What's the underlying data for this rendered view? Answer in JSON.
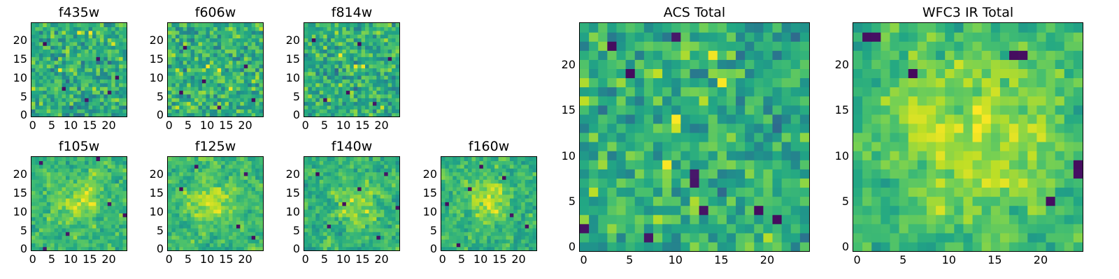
{
  "figure": {
    "colormap": "viridis",
    "colors": {
      "low": "#440154",
      "mid": "#21918c",
      "high": "#fde725"
    }
  },
  "chart_data": [
    {
      "type": "heatmap",
      "title": "f435w",
      "grid": [
        25,
        25
      ],
      "xticks": [
        "0",
        "5",
        "10",
        "15",
        "20"
      ],
      "yticks": [
        "0",
        "5",
        "10",
        "15",
        "20"
      ],
      "xlim": [
        0,
        25
      ],
      "ylim": [
        0,
        25
      ],
      "seed": 11,
      "smooth": 0,
      "bias": 0.0,
      "dark_spots": [
        [
          8,
          7
        ],
        [
          14,
          4
        ],
        [
          20,
          6
        ],
        [
          3,
          19
        ],
        [
          17,
          15
        ],
        [
          22,
          10
        ]
      ],
      "bright_spots": [
        [
          12,
          22
        ],
        [
          15,
          22
        ],
        [
          7,
          12
        ]
      ],
      "hot_blob": null
    },
    {
      "type": "heatmap",
      "title": "f606w",
      "grid": [
        25,
        25
      ],
      "xticks": [
        "0",
        "5",
        "10",
        "15",
        "20"
      ],
      "yticks": [
        "0",
        "5",
        "10",
        "15",
        "20"
      ],
      "xlim": [
        0,
        25
      ],
      "ylim": [
        0,
        25
      ],
      "seed": 23,
      "smooth": 0,
      "bias": 0.02,
      "dark_spots": [
        [
          9,
          9
        ],
        [
          3,
          6
        ],
        [
          20,
          13
        ],
        [
          22,
          4
        ],
        [
          4,
          18
        ],
        [
          13,
          2
        ]
      ],
      "bright_spots": [
        [
          10,
          13
        ],
        [
          13,
          12
        ],
        [
          16,
          7
        ]
      ],
      "hot_blob": null
    },
    {
      "type": "heatmap",
      "title": "f814w",
      "grid": [
        25,
        25
      ],
      "xticks": [
        "0",
        "5",
        "10",
        "15",
        "20"
      ],
      "yticks": [
        "0",
        "5",
        "10",
        "15",
        "20"
      ],
      "xlim": [
        0,
        25
      ],
      "ylim": [
        0,
        25
      ],
      "seed": 37,
      "smooth": 0,
      "bias": 0.0,
      "dark_spots": [
        [
          2,
          20
        ],
        [
          5,
          4
        ],
        [
          14,
          19
        ],
        [
          22,
          15
        ],
        [
          11,
          6
        ],
        [
          18,
          3
        ]
      ],
      "bright_spots": [
        [
          13,
          13
        ],
        [
          15,
          13
        ],
        [
          9,
          16
        ]
      ],
      "hot_blob": null
    },
    {
      "type": "heatmap",
      "title": "f105w",
      "grid": [
        25,
        25
      ],
      "xticks": [
        "0",
        "5",
        "10",
        "15",
        "20"
      ],
      "yticks": [
        "0",
        "5",
        "10",
        "15",
        "20"
      ],
      "xlim": [
        0,
        25
      ],
      "ylim": [
        0,
        25
      ],
      "seed": 41,
      "smooth": 1,
      "bias": 0.04,
      "dark_spots": [
        [
          17,
          24
        ],
        [
          3,
          0
        ],
        [
          24,
          9
        ],
        [
          2,
          23
        ],
        [
          9,
          4
        ],
        [
          20,
          12
        ]
      ],
      "bright_spots": [
        [
          14,
          15
        ],
        [
          12,
          12
        ]
      ],
      "hot_blob": [
        13,
        13,
        4
      ]
    },
    {
      "type": "heatmap",
      "title": "f125w",
      "grid": [
        25,
        25
      ],
      "xticks": [
        "0",
        "5",
        "10",
        "15",
        "20"
      ],
      "yticks": [
        "0",
        "5",
        "10",
        "15",
        "20"
      ],
      "xlim": [
        0,
        25
      ],
      "ylim": [
        0,
        25
      ],
      "seed": 53,
      "smooth": 1,
      "bias": 0.05,
      "dark_spots": [
        [
          18,
          6
        ],
        [
          22,
          3
        ],
        [
          3,
          16
        ],
        [
          20,
          20
        ],
        [
          7,
          22
        ]
      ],
      "bright_spots": [
        [
          10,
          12
        ],
        [
          13,
          10
        ]
      ],
      "hot_blob": [
        11,
        12,
        4
      ]
    },
    {
      "type": "heatmap",
      "title": "f140w",
      "grid": [
        25,
        25
      ],
      "xticks": [
        "0",
        "5",
        "10",
        "15",
        "20"
      ],
      "yticks": [
        "0",
        "5",
        "10",
        "15",
        "20"
      ],
      "xlim": [
        0,
        25
      ],
      "ylim": [
        0,
        25
      ],
      "seed": 67,
      "smooth": 1,
      "bias": 0.02,
      "dark_spots": [
        [
          14,
          16
        ],
        [
          6,
          6
        ],
        [
          24,
          11
        ],
        [
          3,
          20
        ],
        [
          19,
          3
        ],
        [
          10,
          12
        ],
        [
          21,
          20
        ]
      ],
      "bright_spots": [
        [
          12,
          13
        ],
        [
          16,
          10
        ]
      ],
      "hot_blob": [
        13,
        12,
        4
      ]
    },
    {
      "type": "heatmap",
      "title": "f160w",
      "grid": [
        25,
        25
      ],
      "xticks": [
        "0",
        "5",
        "10",
        "15",
        "20"
      ],
      "yticks": [
        "0",
        "5",
        "10",
        "15",
        "20"
      ],
      "xlim": [
        0,
        25
      ],
      "ylim": [
        0,
        25
      ],
      "seed": 79,
      "smooth": 1,
      "bias": 0.03,
      "dark_spots": [
        [
          16,
          19
        ],
        [
          4,
          1
        ],
        [
          22,
          6
        ],
        [
          10,
          22
        ],
        [
          1,
          12
        ],
        [
          18,
          9
        ],
        [
          7,
          16
        ]
      ],
      "bright_spots": [
        [
          12,
          14
        ],
        [
          14,
          10
        ]
      ],
      "hot_blob": [
        12,
        13,
        4
      ]
    },
    {
      "type": "heatmap",
      "title": "ACS Total",
      "grid": [
        25,
        25
      ],
      "xticks": [
        "0",
        "5",
        "10",
        "15",
        "20"
      ],
      "yticks": [
        "0",
        "5",
        "10",
        "15",
        "20"
      ],
      "xlim": [
        0,
        25
      ],
      "ylim": [
        0,
        25
      ],
      "seed": 97,
      "smooth": 0,
      "bias": 0.0,
      "dark_spots": [
        [
          3,
          22
        ],
        [
          10,
          23
        ],
        [
          5,
          19
        ],
        [
          12,
          8
        ],
        [
          12,
          7
        ],
        [
          7,
          1
        ],
        [
          19,
          4
        ],
        [
          21,
          3
        ],
        [
          0,
          2
        ],
        [
          13,
          4
        ]
      ],
      "bright_spots": [
        [
          14,
          21
        ],
        [
          10,
          14
        ],
        [
          9,
          9
        ],
        [
          15,
          18
        ]
      ],
      "hot_blob": null
    },
    {
      "type": "heatmap",
      "title": "WFC3 IR Total",
      "grid": [
        25,
        25
      ],
      "xticks": [
        "0",
        "5",
        "10",
        "15",
        "20"
      ],
      "yticks": [
        "0",
        "5",
        "10",
        "15",
        "20"
      ],
      "xlim": [
        0,
        25
      ],
      "ylim": [
        0,
        25
      ],
      "seed": 113,
      "smooth": 1,
      "bias": 0.05,
      "dark_spots": [
        [
          1,
          23
        ],
        [
          2,
          23
        ],
        [
          17,
          21
        ],
        [
          18,
          21
        ],
        [
          6,
          19
        ],
        [
          21,
          5
        ],
        [
          24,
          8
        ],
        [
          24,
          9
        ]
      ],
      "bright_spots": [
        [
          13,
          12
        ],
        [
          14,
          14
        ]
      ],
      "hot_blob": [
        13,
        12,
        6
      ]
    }
  ]
}
